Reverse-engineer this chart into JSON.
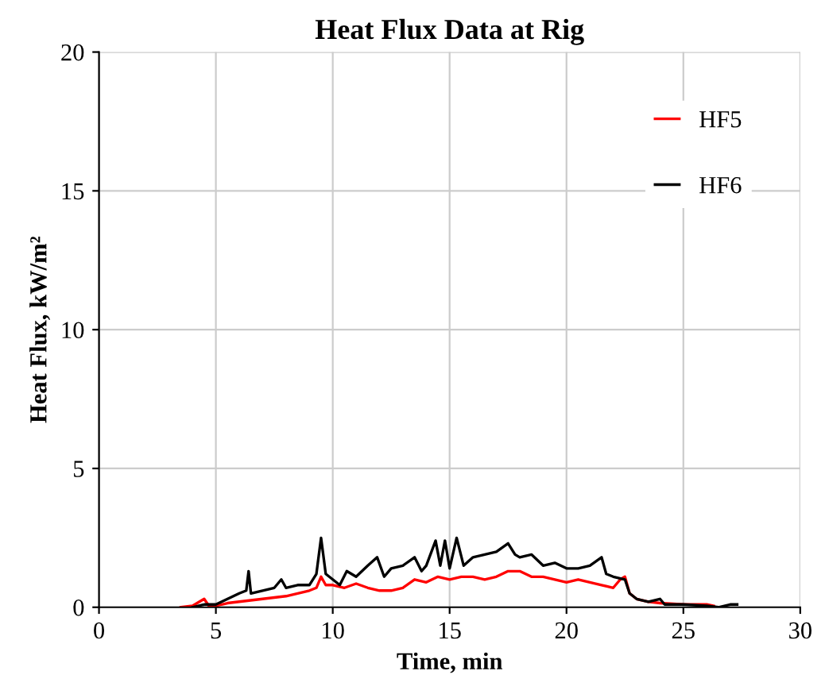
{
  "chart_data": {
    "type": "line",
    "title": "Heat Flux Data at Rig",
    "xlabel": "Time, min",
    "ylabel": "Heat Flux, kW/m²",
    "xlim": [
      0,
      30
    ],
    "xticks": [
      0,
      5,
      10,
      15,
      20,
      25,
      30
    ],
    "ylim": [
      0,
      20
    ],
    "yticks": [
      0,
      5,
      10,
      15,
      20
    ],
    "grid": true,
    "legend": "top right",
    "marker": "none",
    "line_style": "solid",
    "series": [
      {
        "name": "HF5",
        "color": "#ff0000",
        "x": [
          3.5,
          4.0,
          4.5,
          4.7,
          5,
          5.5,
          6,
          6.5,
          7,
          7.5,
          8,
          8.5,
          9,
          9.3,
          9.5,
          9.7,
          10,
          10.5,
          11,
          11.5,
          12,
          12.5,
          13,
          13.5,
          14,
          14.5,
          15,
          15.5,
          16,
          16.5,
          17,
          17.5,
          18,
          18.5,
          19,
          19.5,
          20,
          20.5,
          21,
          21.5,
          22,
          22.3,
          22.5,
          22.7,
          23,
          23.5,
          24,
          25,
          26,
          26.3
        ],
        "values": [
          0,
          0.05,
          0.3,
          0.05,
          0.05,
          0.15,
          0.2,
          0.25,
          0.3,
          0.35,
          0.4,
          0.5,
          0.6,
          0.7,
          1.1,
          0.8,
          0.8,
          0.7,
          0.85,
          0.7,
          0.6,
          0.6,
          0.7,
          1.0,
          0.9,
          1.1,
          1.0,
          1.1,
          1.1,
          1.0,
          1.1,
          1.3,
          1.3,
          1.1,
          1.1,
          1.0,
          0.9,
          1.0,
          0.9,
          0.8,
          0.7,
          1.0,
          1.1,
          0.5,
          0.3,
          0.2,
          0.15,
          0.1,
          0.1,
          0.05
        ]
      },
      {
        "name": "HF6",
        "color": "#000000",
        "x": [
          4,
          4.5,
          5,
          5.5,
          6,
          6.3,
          6.4,
          6.5,
          7,
          7.5,
          7.8,
          8,
          8.5,
          9,
          9.3,
          9.5,
          9.7,
          10,
          10.3,
          10.6,
          11,
          11.5,
          11.9,
          12.2,
          12.5,
          13,
          13.5,
          13.8,
          14,
          14.4,
          14.6,
          14.8,
          15,
          15.3,
          15.6,
          16,
          16.5,
          17,
          17.5,
          17.8,
          18,
          18.5,
          19,
          19.5,
          20,
          20.5,
          21,
          21.5,
          21.7,
          22,
          22.5,
          22.7,
          23,
          23.5,
          24,
          24.2,
          25,
          26,
          26.5,
          27,
          27.3
        ],
        "values": [
          0,
          0.1,
          0.1,
          0.3,
          0.5,
          0.6,
          1.3,
          0.5,
          0.6,
          0.7,
          1.0,
          0.7,
          0.8,
          0.8,
          1.2,
          2.5,
          1.2,
          1.0,
          0.8,
          1.3,
          1.1,
          1.5,
          1.8,
          1.1,
          1.4,
          1.5,
          1.8,
          1.3,
          1.5,
          2.4,
          1.5,
          2.4,
          1.4,
          2.5,
          1.5,
          1.8,
          1.9,
          2.0,
          2.3,
          1.9,
          1.8,
          1.9,
          1.5,
          1.6,
          1.4,
          1.4,
          1.5,
          1.8,
          1.2,
          1.1,
          1.0,
          0.5,
          0.3,
          0.2,
          0.3,
          0.1,
          0.1,
          0.05,
          0,
          0.1,
          0.1
        ]
      }
    ]
  }
}
